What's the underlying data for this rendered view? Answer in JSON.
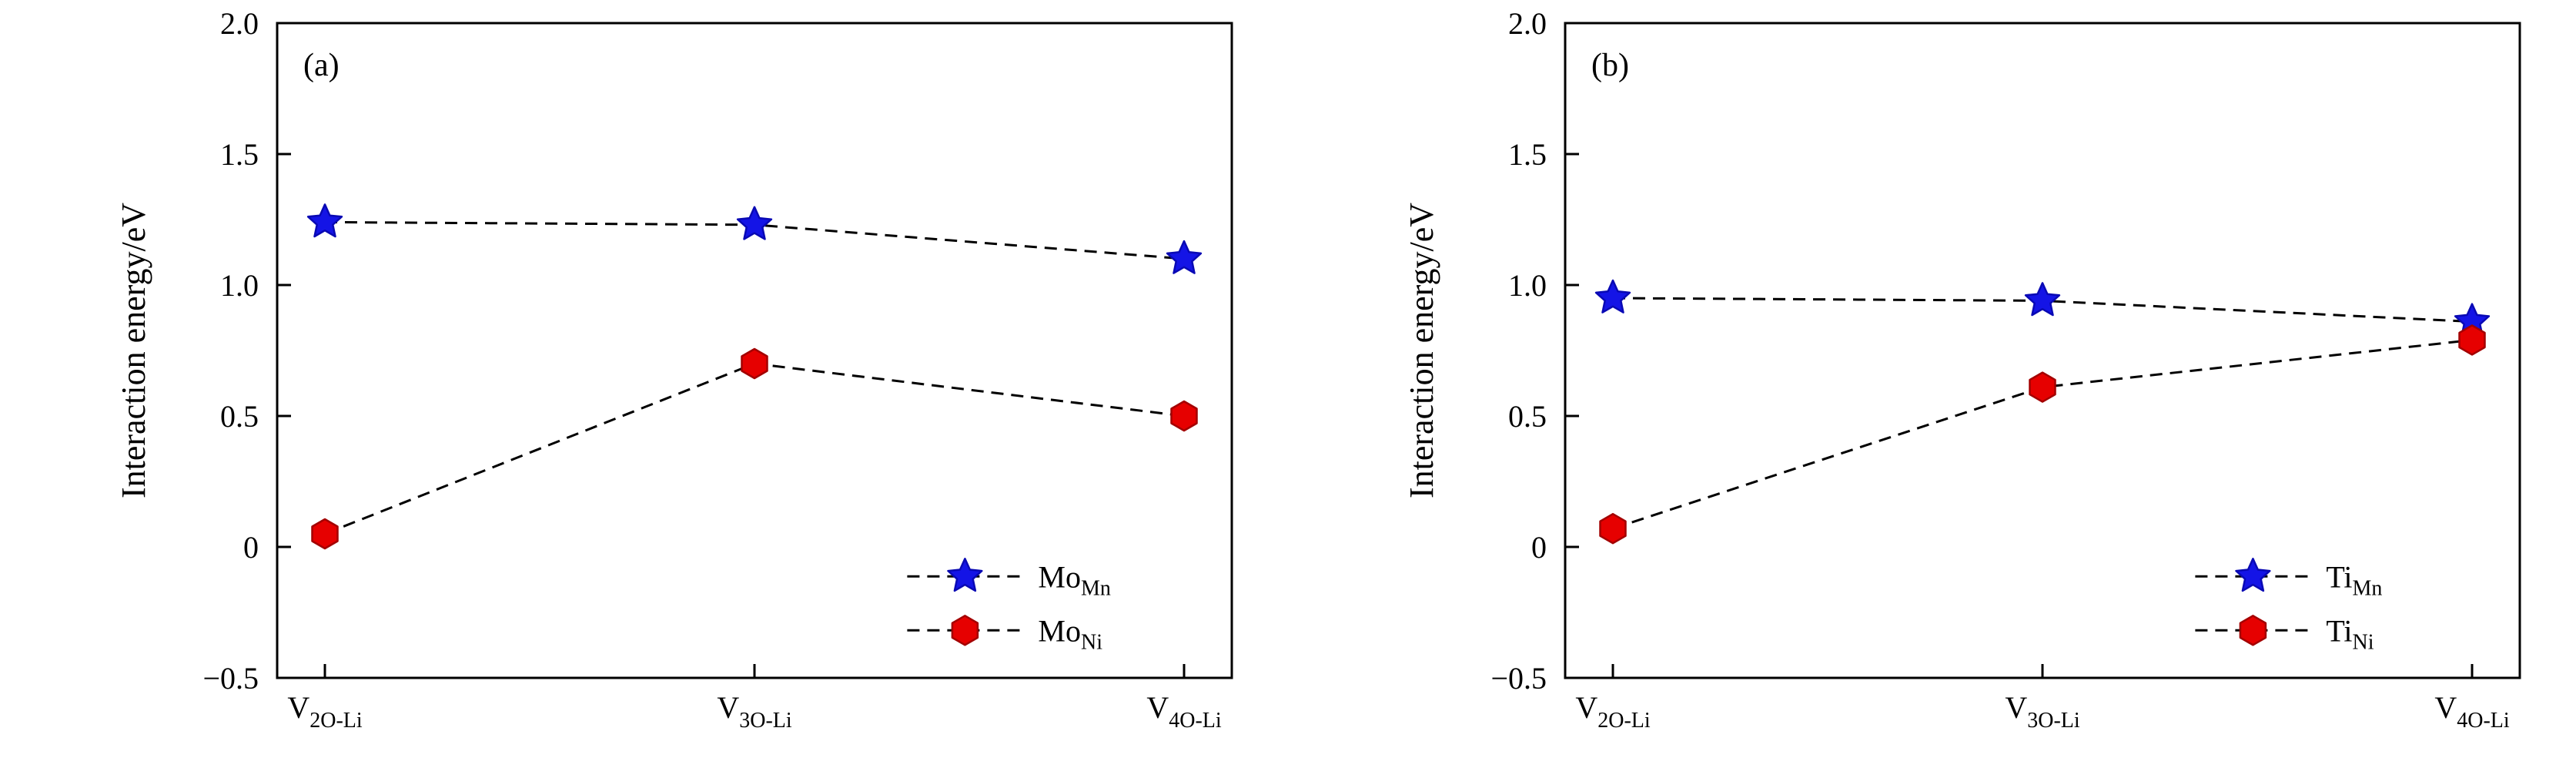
{
  "figure": {
    "background": "#ffffff",
    "axis_color": "#000000",
    "line_color": "#000000",
    "line_style": "dashed"
  },
  "chart_data": [
    {
      "type": "line",
      "panel_label": "(a)",
      "ylabel": "Interaction energy/eV",
      "ylim": [
        -0.5,
        2.0
      ],
      "grid": false,
      "legend_position": "lower right",
      "yticks": [
        {
          "v": -0.5,
          "label": "−0.5"
        },
        {
          "v": 0,
          "label": "0"
        },
        {
          "v": 0.5,
          "label": "0.5"
        },
        {
          "v": 1.0,
          "label": "1.0"
        },
        {
          "v": 1.5,
          "label": "1.5"
        },
        {
          "v": 2.0,
          "label": "2.0"
        }
      ],
      "categories": [
        {
          "main": "V",
          "sub": "2O-Li"
        },
        {
          "main": "V",
          "sub": "3O-Li"
        },
        {
          "main": "V",
          "sub": "4O-Li"
        }
      ],
      "series": [
        {
          "label_main": "Mo",
          "label_sub": "Mn",
          "marker": "star",
          "fill": "#1414e6",
          "edge": "#0909b4",
          "values": [
            1.24,
            1.23,
            1.1
          ]
        },
        {
          "label_main": "Mo",
          "label_sub": "Ni",
          "marker": "hexagon",
          "fill": "#e60000",
          "edge": "#a30000",
          "values": [
            0.05,
            0.7,
            0.5
          ]
        }
      ]
    },
    {
      "type": "line",
      "panel_label": "(b)",
      "ylabel": "Interaction energy/eV",
      "ylim": [
        -0.5,
        2.0
      ],
      "grid": false,
      "legend_position": "lower right",
      "yticks": [
        {
          "v": -0.5,
          "label": "−0.5"
        },
        {
          "v": 0,
          "label": "0"
        },
        {
          "v": 0.5,
          "label": "0.5"
        },
        {
          "v": 1.0,
          "label": "1.0"
        },
        {
          "v": 1.5,
          "label": "1.5"
        },
        {
          "v": 2.0,
          "label": "2.0"
        }
      ],
      "categories": [
        {
          "main": "V",
          "sub": "2O-Li"
        },
        {
          "main": "V",
          "sub": "3O-Li"
        },
        {
          "main": "V",
          "sub": "4O-Li"
        }
      ],
      "series": [
        {
          "label_main": "Ti",
          "label_sub": "Mn",
          "marker": "star",
          "fill": "#1414e6",
          "edge": "#0909b4",
          "values": [
            0.95,
            0.94,
            0.86
          ]
        },
        {
          "label_main": "Ti",
          "label_sub": "Ni",
          "marker": "hexagon",
          "fill": "#e60000",
          "edge": "#a30000",
          "values": [
            0.07,
            0.61,
            0.79
          ]
        }
      ]
    }
  ]
}
